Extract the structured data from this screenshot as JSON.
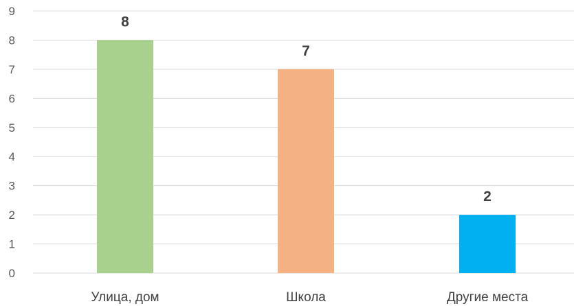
{
  "chart_data": {
    "type": "bar",
    "categories": [
      "Улица, дом",
      "Школа",
      "Другие места"
    ],
    "values": [
      8,
      7,
      2
    ],
    "colors": [
      "#a9d18e",
      "#f4b183",
      "#00b0f0"
    ],
    "ylim": [
      0,
      9
    ],
    "yticks": [
      "0",
      "1",
      "2",
      "3",
      "4",
      "5",
      "6",
      "7",
      "8",
      "9"
    ],
    "data_labels": [
      "8",
      "7",
      "2"
    ],
    "grid": true,
    "legend": "none",
    "title": "",
    "xlabel": "",
    "ylabel": ""
  }
}
